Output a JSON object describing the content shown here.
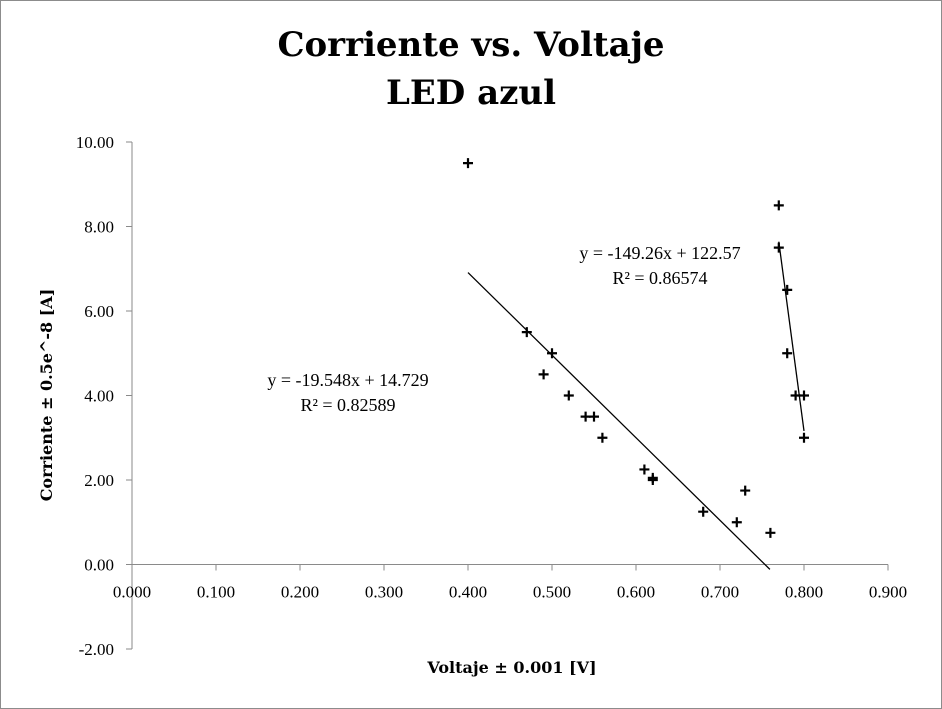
{
  "chart_data": {
    "type": "scatter",
    "title": "Corriente vs. Voltaje",
    "subtitle": "LED azul",
    "xlabel": "Voltaje ± 0.001 [V]",
    "ylabel": "Corriente ± 0.5e^-8 [A]",
    "xlim": [
      0,
      0.9
    ],
    "ylim": [
      -2,
      10
    ],
    "x_ticks": [
      "0.000",
      "0.100",
      "0.200",
      "0.300",
      "0.400",
      "0.500",
      "0.600",
      "0.700",
      "0.800",
      "0.900"
    ],
    "y_ticks": [
      "-2.00",
      "0.00",
      "2.00",
      "4.00",
      "6.00",
      "8.00",
      "10.00"
    ],
    "grid": false,
    "marker": "+",
    "series": [
      {
        "points": [
          [
            0.4,
            9.5
          ],
          [
            0.47,
            5.5
          ],
          [
            0.49,
            4.5
          ],
          [
            0.5,
            5.0
          ],
          [
            0.52,
            4.0
          ],
          [
            0.54,
            3.5
          ],
          [
            0.55,
            3.5
          ],
          [
            0.56,
            3.0
          ],
          [
            0.61,
            2.25
          ],
          [
            0.62,
            2.0
          ],
          [
            0.62,
            2.05
          ],
          [
            0.68,
            1.25
          ],
          [
            0.72,
            1.0
          ],
          [
            0.73,
            1.75
          ],
          [
            0.76,
            0.75
          ]
        ],
        "trendline": {
          "slope": -19.548,
          "intercept": 14.729,
          "x_range": [
            0.4,
            0.7594
          ],
          "equation": "y = -19.548x + 14.729",
          "r2": "R² = 0.82589"
        }
      },
      {
        "points": [
          [
            0.77,
            8.5
          ],
          [
            0.77,
            7.5
          ],
          [
            0.78,
            6.5
          ],
          [
            0.78,
            5.0
          ],
          [
            0.79,
            4.0
          ],
          [
            0.8,
            4.0
          ],
          [
            0.8,
            3.0
          ]
        ],
        "trendline": {
          "slope": -149.26,
          "intercept": 122.57,
          "x_range": [
            0.77,
            0.8
          ],
          "equation": "y = -149.26x + 122.57",
          "r2": "R² = 0.86574"
        }
      }
    ]
  }
}
